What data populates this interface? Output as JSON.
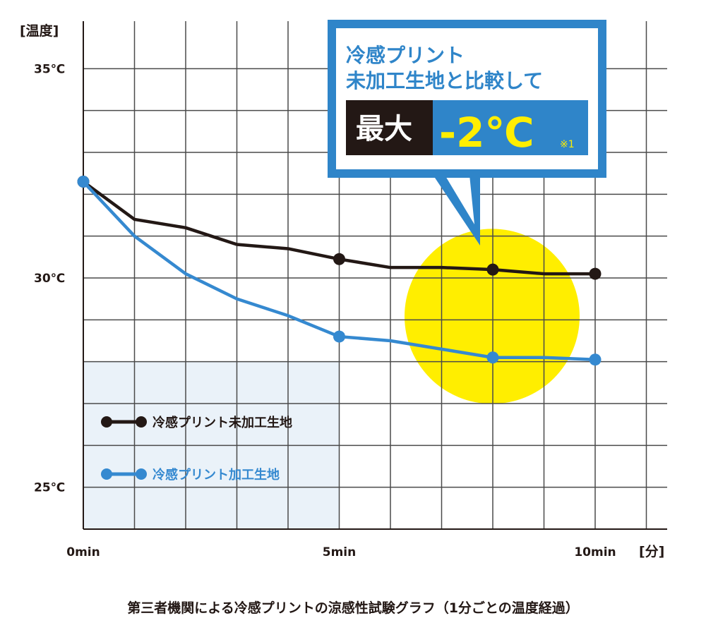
{
  "chart_data": {
    "type": "line",
    "title": "",
    "xlabel": "[分]",
    "ylabel": "[温度]",
    "x": [
      0,
      1,
      2,
      3,
      4,
      5,
      6,
      7,
      8,
      9,
      10
    ],
    "xlim": [
      0,
      11.4
    ],
    "ylim": [
      24,
      36
    ],
    "x_ticks": [
      {
        "value": 0,
        "label": "0min"
      },
      {
        "value": 5,
        "label": "5min"
      },
      {
        "value": 10,
        "label": "10min"
      }
    ],
    "y_ticks": [
      {
        "value": 35,
        "label": "35℃"
      },
      {
        "value": 30,
        "label": "30℃"
      },
      {
        "value": 25,
        "label": "25℃"
      }
    ],
    "grid": true,
    "series": [
      {
        "name": "冷感プリント未加工生地",
        "color": "#231815",
        "values": [
          32.3,
          31.4,
          31.2,
          30.8,
          30.7,
          30.45,
          30.25,
          30.25,
          30.2,
          30.1,
          30.1
        ],
        "marker_x": [
          0,
          5,
          8,
          10
        ]
      },
      {
        "name": "冷感プリント加工生地",
        "color": "#3589d0",
        "values": [
          32.3,
          31.0,
          30.1,
          29.5,
          29.1,
          28.6,
          28.5,
          28.3,
          28.1,
          28.1,
          28.05
        ],
        "marker_x": [
          0,
          5,
          8,
          10
        ]
      }
    ],
    "legend": {
      "position": "bottom-left"
    },
    "highlight": {
      "x": 8,
      "y": 29.1,
      "color": "#ffee00"
    }
  },
  "callout": {
    "line1": "冷感プリント",
    "line2": "未加工生地と比較して",
    "badge_label": "最大",
    "badge_value": "-2℃",
    "badge_note": "※1",
    "border_color": "#2f85c9"
  },
  "caption": "第三者機関による冷感プリントの涼感性試験グラフ（1分ごとの温度経過）"
}
